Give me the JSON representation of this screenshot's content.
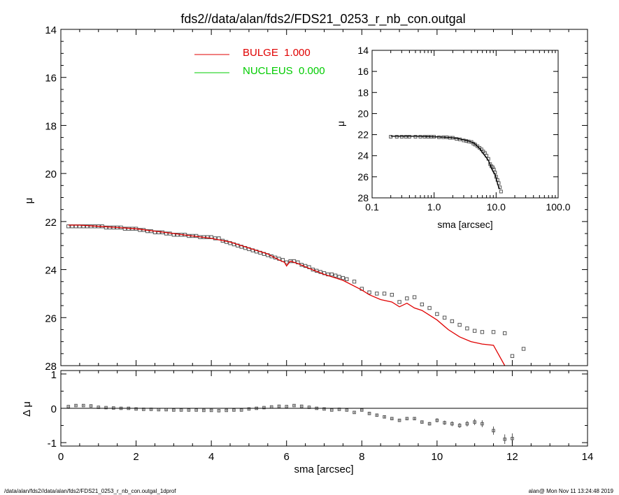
{
  "title": "fds2//data/alan/fds2/FDS21_0253_r_nb_con.outgal",
  "footer": {
    "left": "/data/alan/fds2//data/alan/fds2/FDS21_0253_r_nb_con.outgal_1dprof",
    "right": "alan@  Mon Nov 11 13:24:48 2019"
  },
  "colors": {
    "bulge": "#e00000",
    "nucleus": "#00cc00",
    "data": "#555555",
    "axes": "#000000"
  },
  "chart_data": [
    {
      "id": "main",
      "type": "scatter",
      "title": "fds2//data/alan/fds2/FDS21_0253_r_nb_con.outgal",
      "xlabel": "",
      "ylabel": "μ",
      "xlim": [
        0,
        14
      ],
      "ylim": [
        28,
        14
      ],
      "y_inverted": true,
      "x_ticks": [
        0,
        2,
        4,
        6,
        8,
        10,
        12,
        14
      ],
      "y_ticks": [
        14,
        16,
        18,
        20,
        22,
        24,
        26,
        28
      ],
      "legend": [
        {
          "label": "BULGE  1.000",
          "color": "#e00000"
        },
        {
          "label": "NUCLEUS  0.000",
          "color": "#00cc00"
        }
      ],
      "legend_position": "top-center",
      "series": [
        {
          "name": "data",
          "style": "open-square",
          "x": [
            0.2,
            0.3,
            0.4,
            0.5,
            0.6,
            0.7,
            0.8,
            0.9,
            1.0,
            1.1,
            1.2,
            1.3,
            1.4,
            1.5,
            1.6,
            1.7,
            1.8,
            1.9,
            2.0,
            2.1,
            2.2,
            2.3,
            2.4,
            2.5,
            2.6,
            2.7,
            2.8,
            2.9,
            3.0,
            3.1,
            3.2,
            3.3,
            3.4,
            3.5,
            3.6,
            3.7,
            3.8,
            3.9,
            4.0,
            4.1,
            4.2,
            4.3,
            4.4,
            4.5,
            4.6,
            4.7,
            4.8,
            4.9,
            5.0,
            5.1,
            5.2,
            5.3,
            5.4,
            5.5,
            5.6,
            5.7,
            5.8,
            5.9,
            6.0,
            6.1,
            6.2,
            6.3,
            6.4,
            6.5,
            6.6,
            6.7,
            6.8,
            6.9,
            7.0,
            7.1,
            7.2,
            7.3,
            7.4,
            7.5,
            7.6,
            7.8,
            8.0,
            8.2,
            8.4,
            8.6,
            8.8,
            9.0,
            9.2,
            9.4,
            9.6,
            9.8,
            10.0,
            10.2,
            10.4,
            10.6,
            10.8,
            11.0,
            11.2,
            11.5,
            11.8,
            12.0,
            12.3
          ],
          "y": [
            22.2,
            22.2,
            22.2,
            22.2,
            22.2,
            22.2,
            22.2,
            22.2,
            22.2,
            22.2,
            22.25,
            22.25,
            22.25,
            22.25,
            22.25,
            22.3,
            22.3,
            22.3,
            22.3,
            22.35,
            22.35,
            22.4,
            22.4,
            22.45,
            22.45,
            22.45,
            22.5,
            22.5,
            22.55,
            22.55,
            22.55,
            22.55,
            22.6,
            22.6,
            22.6,
            22.65,
            22.65,
            22.65,
            22.65,
            22.7,
            22.7,
            22.8,
            22.85,
            22.9,
            22.95,
            23.0,
            23.05,
            23.1,
            23.15,
            23.2,
            23.25,
            23.3,
            23.35,
            23.4,
            23.45,
            23.5,
            23.55,
            23.6,
            23.7,
            23.65,
            23.65,
            23.7,
            23.8,
            23.85,
            23.9,
            24.0,
            24.05,
            24.1,
            24.15,
            24.2,
            24.2,
            24.25,
            24.3,
            24.35,
            24.4,
            24.5,
            24.8,
            24.95,
            25.0,
            25.0,
            25.05,
            25.35,
            25.2,
            25.15,
            25.45,
            25.6,
            25.85,
            26.0,
            26.15,
            26.3,
            26.45,
            26.55,
            26.6,
            26.6,
            26.65,
            27.6,
            27.3
          ]
        },
        {
          "name": "BULGE  1.000",
          "style": "line",
          "x": [
            0.2,
            0.5,
            1.0,
            1.5,
            2.0,
            2.5,
            3.0,
            3.5,
            4.0,
            4.5,
            5.0,
            5.5,
            5.8,
            5.95,
            6.0,
            6.1,
            6.3,
            6.6,
            7.0,
            7.5,
            8.0,
            8.2,
            8.5,
            8.8,
            9.0,
            9.2,
            9.4,
            9.6,
            9.8,
            10.0,
            10.3,
            10.6,
            10.9,
            11.2,
            11.5,
            11.8
          ],
          "y": [
            22.15,
            22.15,
            22.2,
            22.25,
            22.3,
            22.4,
            22.5,
            22.6,
            22.7,
            22.85,
            23.1,
            23.35,
            23.6,
            23.7,
            23.85,
            23.65,
            23.75,
            23.95,
            24.2,
            24.45,
            24.85,
            25.05,
            25.25,
            25.35,
            25.55,
            25.4,
            25.6,
            25.7,
            25.9,
            26.1,
            26.5,
            26.8,
            27.0,
            27.1,
            27.15,
            28.0
          ]
        },
        {
          "name": "NUCLEUS  0.000",
          "style": "line",
          "x": [],
          "y": []
        }
      ]
    },
    {
      "id": "residual",
      "type": "scatter",
      "xlabel": "sma [arcsec]",
      "ylabel": "Δ μ",
      "xlim": [
        0,
        14
      ],
      "ylim": [
        -1.1,
        1.1
      ],
      "x_ticks": [
        0,
        2,
        4,
        6,
        8,
        10,
        12,
        14
      ],
      "y_ticks": [
        -1,
        0,
        1
      ],
      "zero_line": true,
      "series": [
        {
          "name": "residual",
          "style": "open-square-with-errorbar",
          "x": [
            0.2,
            0.4,
            0.6,
            0.8,
            1.0,
            1.2,
            1.4,
            1.6,
            1.8,
            2.0,
            2.2,
            2.4,
            2.6,
            2.8,
            3.0,
            3.2,
            3.4,
            3.6,
            3.8,
            4.0,
            4.2,
            4.4,
            4.6,
            4.8,
            5.0,
            5.2,
            5.4,
            5.6,
            5.8,
            6.0,
            6.2,
            6.4,
            6.6,
            6.8,
            7.0,
            7.2,
            7.4,
            7.6,
            7.8,
            8.0,
            8.2,
            8.4,
            8.6,
            8.8,
            9.0,
            9.2,
            9.4,
            9.6,
            9.8,
            10.0,
            10.2,
            10.4,
            10.6,
            10.8,
            11.0,
            11.2,
            11.5,
            11.8,
            12.0
          ],
          "y": [
            0.05,
            0.08,
            0.08,
            0.07,
            0.03,
            0.02,
            0.01,
            0.0,
            0.0,
            -0.02,
            -0.03,
            -0.03,
            -0.04,
            -0.04,
            -0.05,
            -0.05,
            -0.05,
            -0.05,
            -0.06,
            -0.06,
            -0.07,
            -0.06,
            -0.05,
            -0.05,
            -0.02,
            0.0,
            0.02,
            0.04,
            0.06,
            0.05,
            0.08,
            0.06,
            0.03,
            0.0,
            -0.02,
            -0.05,
            -0.03,
            -0.05,
            -0.12,
            -0.05,
            -0.15,
            -0.2,
            -0.25,
            -0.3,
            -0.35,
            -0.3,
            -0.3,
            -0.4,
            -0.45,
            -0.35,
            -0.42,
            -0.45,
            -0.5,
            -0.45,
            -0.4,
            -0.45,
            -0.65,
            -0.9,
            -0.88
          ],
          "err": [
            0.02,
            0.02,
            0.02,
            0.02,
            0.02,
            0.02,
            0.02,
            0.02,
            0.02,
            0.02,
            0.02,
            0.02,
            0.02,
            0.02,
            0.02,
            0.02,
            0.02,
            0.02,
            0.02,
            0.02,
            0.02,
            0.02,
            0.02,
            0.02,
            0.02,
            0.02,
            0.02,
            0.02,
            0.02,
            0.02,
            0.02,
            0.02,
            0.02,
            0.02,
            0.02,
            0.02,
            0.02,
            0.02,
            0.02,
            0.03,
            0.03,
            0.03,
            0.03,
            0.03,
            0.04,
            0.04,
            0.04,
            0.04,
            0.05,
            0.06,
            0.06,
            0.07,
            0.07,
            0.08,
            0.09,
            0.1,
            0.12,
            0.14,
            0.15
          ]
        }
      ]
    },
    {
      "id": "inset",
      "type": "scatter",
      "xlabel": "sma [arcsec]",
      "ylabel": "μ",
      "x_log": true,
      "xlim": [
        0.1,
        100
      ],
      "ylim": [
        28,
        14
      ],
      "y_inverted": true,
      "x_ticks": [
        0.1,
        1,
        10,
        100
      ],
      "x_tick_labels": [
        "0.1",
        "1.0",
        "10.0",
        "100.0"
      ],
      "y_ticks": [
        14,
        16,
        18,
        20,
        22,
        24,
        26,
        28
      ],
      "series": [
        {
          "name": "data",
          "style": "open-square",
          "x": [
            0.2,
            0.25,
            0.3,
            0.35,
            0.4,
            0.5,
            0.6,
            0.7,
            0.8,
            0.9,
            1.0,
            1.2,
            1.4,
            1.6,
            1.8,
            2.0,
            2.3,
            2.6,
            3.0,
            3.3,
            3.6,
            4.0,
            4.3,
            4.6,
            5.0,
            5.4,
            5.8,
            6.2,
            6.6,
            7.0,
            7.5,
            8.0,
            8.4,
            8.8,
            9.2,
            9.6,
            10.0,
            10.5,
            11.0,
            11.5,
            12.0
          ],
          "y": [
            22.2,
            22.2,
            22.2,
            22.2,
            22.2,
            22.2,
            22.2,
            22.2,
            22.2,
            22.2,
            22.2,
            22.25,
            22.25,
            22.25,
            22.3,
            22.3,
            22.4,
            22.45,
            22.55,
            22.6,
            22.65,
            22.7,
            22.85,
            22.95,
            23.1,
            23.25,
            23.4,
            23.6,
            23.75,
            24.0,
            24.3,
            24.8,
            25.0,
            25.1,
            25.3,
            25.6,
            26.0,
            26.3,
            26.6,
            27.0,
            27.4
          ]
        },
        {
          "name": "fit",
          "style": "line",
          "x": [
            0.2,
            0.5,
            1.0,
            1.5,
            2.0,
            2.5,
            3.0,
            3.5,
            4.0,
            4.5,
            5.0,
            5.5,
            6.0,
            6.5,
            7.0,
            7.5,
            8.0,
            8.5,
            9.0,
            9.5,
            10.0,
            10.5,
            11.0,
            11.5
          ],
          "y": [
            22.15,
            22.15,
            22.2,
            22.25,
            22.3,
            22.4,
            22.5,
            22.6,
            22.7,
            22.85,
            23.1,
            23.35,
            23.7,
            23.95,
            24.2,
            24.45,
            24.85,
            25.25,
            25.55,
            25.7,
            26.1,
            26.6,
            27.0,
            27.15
          ]
        }
      ]
    }
  ]
}
